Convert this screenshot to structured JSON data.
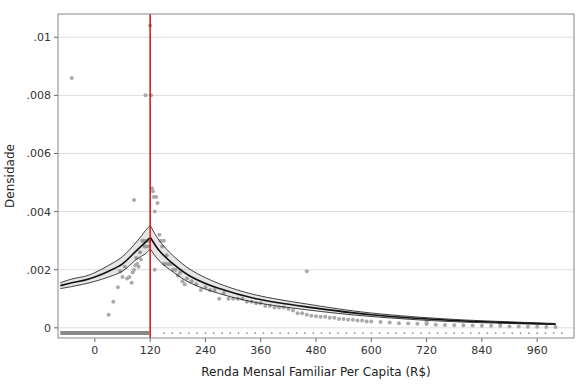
{
  "chart_data": {
    "type": "scatter",
    "xlabel": "Renda Mensal Familiar Per Capita (R$)",
    "ylabel": "Densidade",
    "xlim": [
      -80,
      1040
    ],
    "ylim": [
      -0.00035,
      0.0108
    ],
    "xticks": [
      0,
      120,
      240,
      360,
      480,
      600,
      720,
      840,
      960
    ],
    "yticks": [
      0,
      {
        "value": 0.002,
        "label": ".002"
      },
      {
        "value": 0.004,
        "label": ".004"
      },
      {
        "value": 0.006,
        "label": ".006"
      },
      {
        "value": 0.008,
        "label": ".008"
      },
      {
        "value": 0.01,
        "label": ".01"
      }
    ],
    "grid": "y",
    "cutoff": {
      "x": 120,
      "color": "#cc0000"
    },
    "rug": {
      "y": -0.00018,
      "color": "#888888",
      "line_x": [
        -75,
        118
      ],
      "points_x": [
        150,
        168,
        186,
        204,
        222,
        240,
        258,
        276,
        294,
        312,
        330,
        348,
        366,
        384,
        402,
        420,
        438,
        456,
        474,
        492,
        510,
        528,
        546,
        564,
        582,
        600,
        618,
        636,
        654,
        672,
        690,
        708,
        726,
        744,
        762,
        780,
        798,
        816,
        834,
        852,
        870,
        888,
        906,
        924,
        942,
        960,
        978,
        996,
        1014
      ]
    },
    "series": [
      {
        "type": "scatter",
        "color": "#aaaaaa",
        "x": [
          -50,
          30,
          40,
          50,
          55,
          60,
          65,
          70,
          75,
          80,
          82,
          85,
          88,
          90,
          92,
          95,
          98,
          100,
          103,
          105,
          108,
          110,
          112,
          114,
          116,
          118,
          85,
          110,
          120,
          122,
          124,
          126,
          128,
          130,
          133,
          136,
          140,
          143,
          146,
          150,
          153,
          156,
          160,
          165,
          170,
          175,
          180,
          185,
          190,
          195,
          200,
          210,
          220,
          230,
          240,
          250,
          260,
          270,
          280,
          290,
          300,
          310,
          320,
          330,
          340,
          350,
          360,
          370,
          380,
          390,
          400,
          410,
          420,
          430,
          440,
          450,
          460,
          470,
          480,
          490,
          500,
          510,
          520,
          530,
          540,
          550,
          560,
          570,
          580,
          590,
          600,
          620,
          640,
          660,
          680,
          700,
          720,
          740,
          760,
          780,
          800,
          820,
          840,
          860,
          880,
          900,
          920,
          940,
          960,
          980,
          1000,
          460,
          720,
          880,
          130,
          150
        ],
        "values": [
          0.0086,
          0.00045,
          0.0009,
          0.0014,
          0.00195,
          0.00175,
          0.0021,
          0.0017,
          0.00175,
          0.00155,
          0.0019,
          0.002,
          0.00215,
          0.0024,
          0.0022,
          0.0021,
          0.0026,
          0.00235,
          0.003,
          0.003,
          0.0028,
          0.003,
          0.0028,
          0.003,
          0.0028,
          0.003,
          0.0044,
          0.008,
          0.0104,
          0.008,
          0.0048,
          0.0047,
          0.0045,
          0.004,
          0.0045,
          0.0043,
          0.0032,
          0.003,
          0.0028,
          0.003,
          0.0022,
          0.0025,
          0.0022,
          0.0022,
          0.002,
          0.002,
          0.0018,
          0.0019,
          0.0016,
          0.0015,
          0.0017,
          0.0016,
          0.0015,
          0.0013,
          0.0014,
          0.0013,
          0.0013,
          0.001,
          0.0012,
          0.001,
          0.001,
          0.001,
          0.001,
          0.0009,
          0.0009,
          0.00085,
          0.00085,
          0.00075,
          0.00075,
          0.0007,
          0.0007,
          0.0007,
          0.00065,
          0.0006,
          0.0005,
          0.0005,
          0.00045,
          0.00042,
          0.0004,
          0.00038,
          0.00038,
          0.00035,
          0.00035,
          0.0003,
          0.0003,
          0.00028,
          0.00028,
          0.00025,
          0.00025,
          0.00022,
          0.00022,
          0.0002,
          0.00018,
          0.00016,
          0.00015,
          0.00014,
          0.00013,
          0.00011,
          0.0001,
          9e-05,
          9e-05,
          8e-05,
          7e-05,
          7e-05,
          6e-05,
          5e-05,
          5e-05,
          4e-05,
          4e-05,
          3e-05,
          3e-05,
          0.00195,
          0.00019,
          0.00015,
          0.002,
          0.0022
        ]
      },
      {
        "type": "line",
        "color": "#111111",
        "x": [
          -75,
          -50,
          -20,
          0,
          30,
          60,
          90,
          110,
          119
        ],
        "values": [
          0.00145,
          0.00155,
          0.00165,
          0.00175,
          0.00195,
          0.0022,
          0.00265,
          0.00295,
          0.0031
        ],
        "upper": [
          0.00155,
          0.00168,
          0.00178,
          0.0019,
          0.00215,
          0.00245,
          0.00295,
          0.00335,
          0.0035
        ],
        "lower": [
          0.00135,
          0.00142,
          0.00152,
          0.0016,
          0.00175,
          0.00195,
          0.00235,
          0.00255,
          0.0027
        ]
      },
      {
        "type": "line",
        "color": "#111111",
        "x": [
          121,
          140,
          170,
          210,
          270,
          350,
          460,
          600,
          780,
          1000
        ],
        "values": [
          0.0031,
          0.00265,
          0.0022,
          0.00175,
          0.00135,
          0.001,
          0.00072,
          0.00045,
          0.00025,
          0.00013
        ],
        "upper": [
          0.0035,
          0.003,
          0.00248,
          0.00198,
          0.00152,
          0.00113,
          0.00082,
          0.00051,
          0.00029,
          0.00015
        ],
        "lower": [
          0.0027,
          0.0023,
          0.00192,
          0.00152,
          0.00118,
          0.00087,
          0.00062,
          0.00039,
          0.00021,
          0.00011
        ]
      }
    ]
  }
}
